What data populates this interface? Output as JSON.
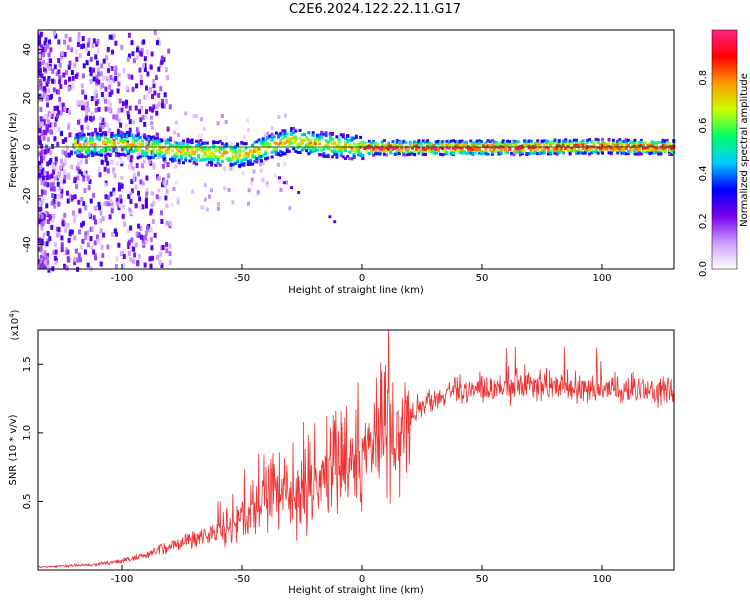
{
  "title": "C2E6.2024.122.22.11.G17",
  "chart_data": [
    {
      "type": "heatmap",
      "xlabel": "Height of straight line (km)",
      "ylabel": "Frequency (Hz)",
      "xlim": [
        -135,
        130
      ],
      "ylim": [
        -50,
        48
      ],
      "xticks": [
        -100,
        -50,
        0,
        50,
        100
      ],
      "yticks": [
        -40,
        -20,
        0,
        20,
        40
      ],
      "colorbar": {
        "label": "Normalized spectral amplitude",
        "range": [
          0,
          1
        ],
        "ticks": [
          0.0,
          0.2,
          0.4,
          0.6,
          0.8
        ],
        "colormap": "rainbow",
        "colors": [
          "#ffffff",
          "#cc99ff",
          "#7700ee",
          "#0000ff",
          "#00ccff",
          "#00ff66",
          "#ccff00",
          "#ff9900",
          "#ff0000",
          "#ff2288"
        ]
      },
      "ridge_frequency_hz": [
        {
          "x": -115,
          "y": 1.5
        },
        {
          "x": -100,
          "y": 2.0
        },
        {
          "x": -90,
          "y": 0.5
        },
        {
          "x": -70,
          "y": -1.5
        },
        {
          "x": -50,
          "y": -2.5
        },
        {
          "x": -40,
          "y": 0.5
        },
        {
          "x": -30,
          "y": 3.5
        },
        {
          "x": -20,
          "y": 2.0
        },
        {
          "x": -10,
          "y": 1.0
        },
        {
          "x": 0,
          "y": 0.3
        },
        {
          "x": 50,
          "y": 0.3
        },
        {
          "x": 100,
          "y": 0.8
        },
        {
          "x": 130,
          "y": 0.5
        }
      ]
    },
    {
      "type": "line",
      "xlabel": "Height of straight line (km)",
      "ylabel": "SNR (10 * v/v)",
      "multiplier": "(x10",
      "multiplier_exp": "4",
      "multiplier_close": ")",
      "xlim": [
        -135,
        130
      ],
      "ylim": [
        0,
        1.75
      ],
      "xticks": [
        -100,
        -50,
        0,
        50,
        100
      ],
      "yticks": [
        0.5,
        1.0,
        1.5
      ],
      "line_color": "#ee3333",
      "series": [
        {
          "envelope": [
            {
              "x": -135,
              "y": 0.02
            },
            {
              "x": -110,
              "y": 0.04
            },
            {
              "x": -95,
              "y": 0.08
            },
            {
              "x": -85,
              "y": 0.14
            },
            {
              "x": -75,
              "y": 0.2
            },
            {
              "x": -65,
              "y": 0.25
            },
            {
              "x": -55,
              "y": 0.3
            },
            {
              "x": -45,
              "y": 0.42
            },
            {
              "x": -38,
              "y": 0.55
            },
            {
              "x": -32,
              "y": 0.48
            },
            {
              "x": -25,
              "y": 0.55
            },
            {
              "x": -15,
              "y": 0.68
            },
            {
              "x": -8,
              "y": 0.75
            },
            {
              "x": 0,
              "y": 0.84
            },
            {
              "x": 5,
              "y": 0.9
            },
            {
              "x": 10,
              "y": 0.96
            },
            {
              "x": 15,
              "y": 1.02
            },
            {
              "x": 20,
              "y": 1.12
            },
            {
              "x": 25,
              "y": 1.2
            },
            {
              "x": 30,
              "y": 1.25
            },
            {
              "x": 40,
              "y": 1.3
            },
            {
              "x": 60,
              "y": 1.32
            },
            {
              "x": 80,
              "y": 1.33
            },
            {
              "x": 100,
              "y": 1.3
            },
            {
              "x": 115,
              "y": 1.3
            },
            {
              "x": 130,
              "y": 1.3
            }
          ]
        }
      ]
    }
  ]
}
